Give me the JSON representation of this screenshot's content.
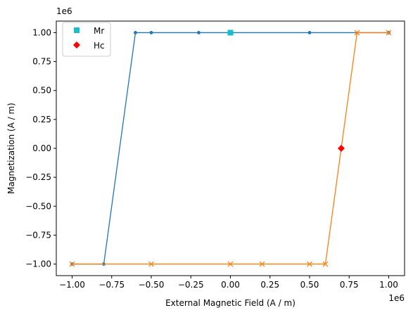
{
  "chart_data": {
    "type": "line",
    "xlabel": "External Magnetic Field (A / m)",
    "ylabel": "Magnetization (A / m)",
    "x_offset_label": "1e6",
    "y_offset_label": "1e6",
    "xlim": [
      -1.1,
      1.1
    ],
    "ylim": [
      -1.1,
      1.1
    ],
    "x_ticks": [
      -1.0,
      -0.75,
      -0.5,
      -0.25,
      0.0,
      0.25,
      0.5,
      0.75,
      1.0
    ],
    "x_tick_labels": [
      "−1.00",
      "−0.75",
      "−0.50",
      "−0.25",
      "0.00",
      "0.25",
      "0.50",
      "0.75",
      "1.00"
    ],
    "y_ticks": [
      1.0,
      0.75,
      0.5,
      0.25,
      0.0,
      -0.25,
      -0.5,
      -0.75,
      -1.0
    ],
    "y_tick_labels": [
      "1.00",
      "0.75",
      "0.50",
      "0.25",
      "0.00",
      "−0.25",
      "−0.50",
      "−0.75",
      "−1.00"
    ],
    "grid": false,
    "legend_placement": "top-left",
    "series": [
      {
        "color": "#1f77b4",
        "marker": "dot",
        "x": [
          1.0,
          0.5,
          -0.2,
          -0.5,
          -0.6,
          -0.8,
          -1.0
        ],
        "y": [
          1.0,
          1.0,
          1.0,
          1.0,
          1.0,
          -1.0,
          -1.0
        ]
      },
      {
        "color": "#ff7f0e",
        "marker": "x",
        "x": [
          -1.0,
          -0.5,
          0.0,
          0.2,
          0.5,
          0.6,
          0.8,
          1.0
        ],
        "y": [
          -1.0,
          -1.0,
          -1.0,
          -1.0,
          -1.0,
          -1.0,
          1.0,
          1.0
        ]
      },
      {
        "name": "Mr",
        "color": "#17becf",
        "marker": "square",
        "x": [
          0.0
        ],
        "y": [
          1.0
        ]
      },
      {
        "name": "Hc",
        "color": "#ff0000",
        "marker": "diamond",
        "x": [
          0.7
        ],
        "y": [
          0.0
        ]
      }
    ]
  }
}
